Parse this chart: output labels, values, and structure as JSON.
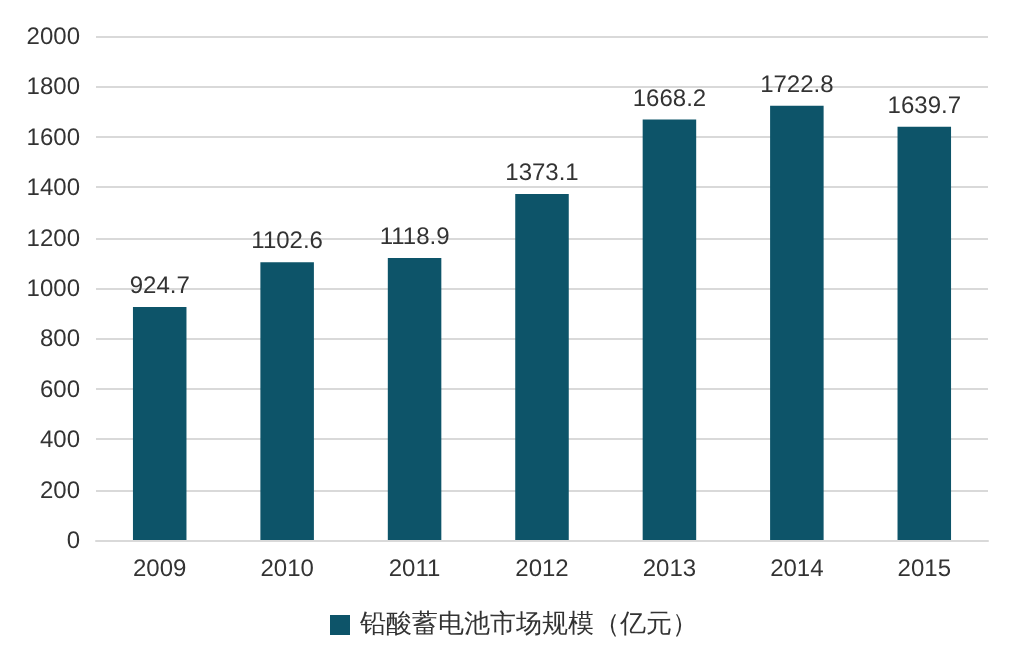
{
  "chart_data": {
    "type": "bar",
    "categories": [
      "2009",
      "2010",
      "2011",
      "2012",
      "2013",
      "2014",
      "2015"
    ],
    "series": [
      {
        "name": "铅酸蓄电池市场规模（亿元）",
        "color": "#0d5469",
        "values": [
          924.7,
          1102.6,
          1118.9,
          1373.1,
          1668.2,
          1722.8,
          1639.7
        ]
      }
    ],
    "ylim": [
      0,
      2000
    ],
    "yticks": [
      0,
      200,
      400,
      600,
      800,
      1000,
      1200,
      1400,
      1600,
      1800,
      2000
    ],
    "grid": "y",
    "legend": "bottom",
    "data_labels": true
  }
}
